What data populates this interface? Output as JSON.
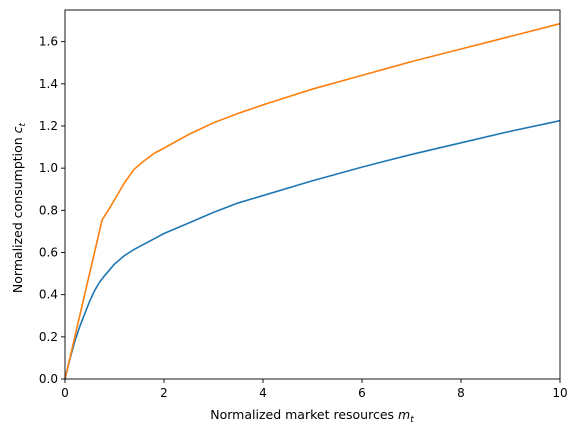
{
  "chart_data": {
    "type": "line",
    "title": "",
    "xlabel": {
      "text": "Normalized market resources ",
      "var": "m",
      "sub": "t"
    },
    "ylabel": {
      "text": "Normalized consumption ",
      "var": "c",
      "sub": "t"
    },
    "xlim": [
      0,
      10
    ],
    "ylim": [
      0,
      1.75
    ],
    "xticks": [
      0,
      2,
      4,
      6,
      8,
      10
    ],
    "xtick_labels": [
      "0",
      "2",
      "4",
      "6",
      "8",
      "10"
    ],
    "yticks": [
      0.0,
      0.2,
      0.4,
      0.6,
      0.8,
      1.0,
      1.2,
      1.4,
      1.6
    ],
    "ytick_labels": [
      "0.0",
      "0.2",
      "0.4",
      "0.6",
      "0.8",
      "1.0",
      "1.2",
      "1.4",
      "1.6"
    ],
    "grid": false,
    "series": [
      {
        "color": "#1f77b4",
        "x": [
          0,
          0.1,
          0.2,
          0.3,
          0.4,
          0.5,
          0.6,
          0.7,
          0.8,
          1.0,
          1.2,
          1.4,
          1.6,
          1.8,
          2.0,
          2.5,
          3.0,
          3.5,
          4.0,
          5.0,
          6.0,
          7.0,
          8.0,
          9.0,
          10.0
        ],
        "y": [
          0.0,
          0.095,
          0.18,
          0.25,
          0.31,
          0.37,
          0.42,
          0.46,
          0.49,
          0.545,
          0.585,
          0.615,
          0.64,
          0.665,
          0.69,
          0.74,
          0.79,
          0.835,
          0.87,
          0.94,
          1.005,
          1.065,
          1.12,
          1.175,
          1.225
        ]
      },
      {
        "color": "#ff7f0e",
        "x": [
          0,
          0.75,
          0.9,
          1.0,
          1.2,
          1.4,
          1.6,
          1.8,
          2.0,
          2.5,
          3.0,
          3.5,
          4.0,
          5.0,
          6.0,
          7.0,
          8.0,
          9.0,
          10.0
        ],
        "y": [
          0.0,
          0.755,
          0.81,
          0.85,
          0.93,
          0.995,
          1.035,
          1.07,
          1.095,
          1.16,
          1.215,
          1.26,
          1.3,
          1.375,
          1.44,
          1.505,
          1.565,
          1.625,
          1.685
        ]
      }
    ]
  }
}
